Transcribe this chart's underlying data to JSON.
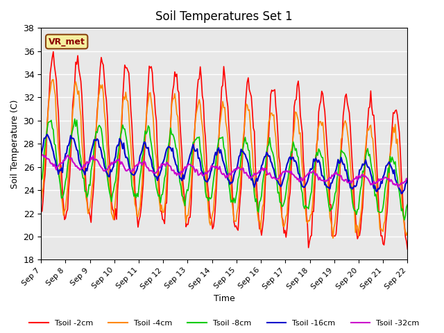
{
  "title": "Soil Temperatures Set 1",
  "xlabel": "Time",
  "ylabel": "Soil Temperature (C)",
  "ylim": [
    18,
    38
  ],
  "yticks": [
    18,
    20,
    22,
    24,
    26,
    28,
    30,
    32,
    34,
    36,
    38
  ],
  "xlim_days": [
    0,
    15
  ],
  "x_tick_labels": [
    "Sep 7",
    "Sep 8",
    "Sep 9",
    "Sep 10",
    "Sep 11",
    "Sep 12",
    "Sep 13",
    "Sep 14",
    "Sep 15",
    "Sep 16",
    "Sep 17",
    "Sep 18",
    "Sep 19",
    "Sep 20",
    "Sep 21",
    "Sep 22"
  ],
  "line_colors": {
    "Tsoil -2cm": "#ff0000",
    "Tsoil -4cm": "#ff8800",
    "Tsoil -8cm": "#00cc00",
    "Tsoil -16cm": "#0000cc",
    "Tsoil -32cm": "#cc00cc"
  },
  "legend_labels": [
    "Tsoil -2cm",
    "Tsoil -4cm",
    "Tsoil -8cm",
    "Tsoil -16cm",
    "Tsoil -32cm"
  ],
  "annotation_text": "VR_met",
  "bg_color": "#e8e8e8",
  "fig_bg_color": "#ffffff",
  "n_points": 360,
  "days": 15
}
